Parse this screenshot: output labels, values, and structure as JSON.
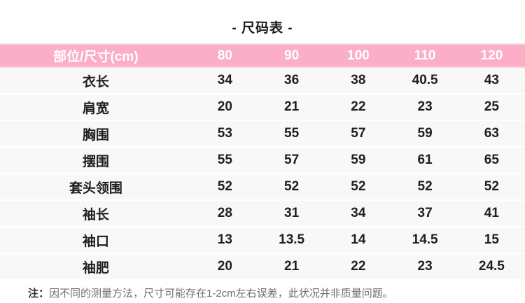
{
  "title": "- 尺码表 -",
  "chart_data": {
    "type": "table",
    "title": "尺码表",
    "columns": [
      "部位/尺寸(cm)",
      "80",
      "90",
      "100",
      "110",
      "120"
    ],
    "rows": [
      {
        "label": "衣长",
        "values": [
          "34",
          "36",
          "38",
          "40.5",
          "43"
        ]
      },
      {
        "label": "肩宽",
        "values": [
          "20",
          "21",
          "22",
          "23",
          "25"
        ]
      },
      {
        "label": "胸围",
        "values": [
          "53",
          "55",
          "57",
          "59",
          "63"
        ]
      },
      {
        "label": "摆围",
        "values": [
          "55",
          "57",
          "59",
          "61",
          "65"
        ]
      },
      {
        "label": "套头领围",
        "values": [
          "52",
          "52",
          "52",
          "52",
          "52"
        ]
      },
      {
        "label": "袖长",
        "values": [
          "28",
          "31",
          "34",
          "37",
          "41"
        ]
      },
      {
        "label": "袖口",
        "values": [
          "13",
          "13.5",
          "14",
          "14.5",
          "15"
        ]
      },
      {
        "label": "袖肥",
        "values": [
          "20",
          "21",
          "22",
          "23",
          "24.5"
        ]
      }
    ]
  },
  "note": {
    "prefix": "注：",
    "text": "因不同的测量方法，尺寸可能存在1-2cm左右误差，此状况并非质量问题。"
  },
  "colors": {
    "page_bg": "#FFFFFF",
    "title_text": "#1A1A1A",
    "header_bg": "#FBAEC8",
    "header_edge": "#FBD5E1",
    "header_text": "#FFFFFF",
    "row_bg": "#F8F8F8",
    "cell_text": "#1F1F1F",
    "note_text": "#6E6E6E",
    "note_prefix_text": "#333333"
  }
}
